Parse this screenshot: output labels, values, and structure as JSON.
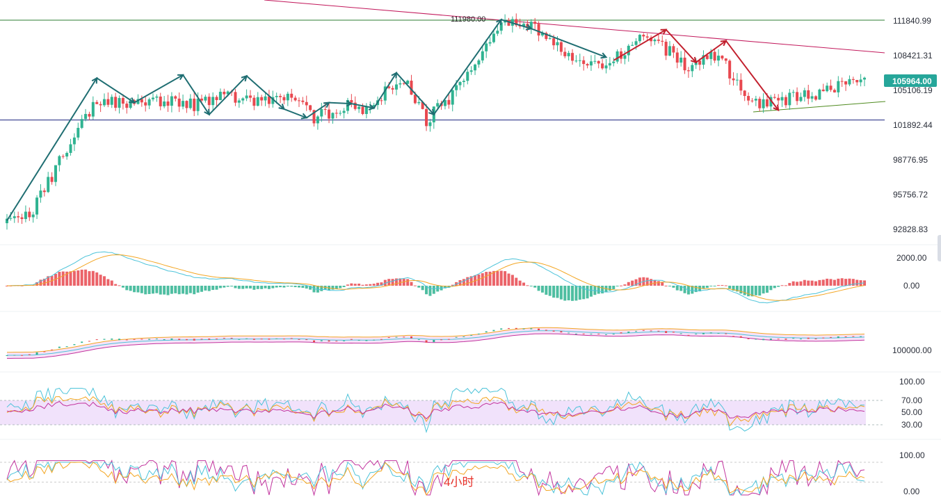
{
  "colors": {
    "up": "#2fb391",
    "down": "#e8484f",
    "uptrend_arrow": "#1f6e72",
    "downtrend_arrow": "#c2202e",
    "resistance_line": "#2e7d32",
    "support_line": "#1a237e",
    "trend_line": "#c2185b",
    "price_tag_bg": "#26a69a",
    "timeframe_text": "#e8322b"
  },
  "price_axis": {
    "labels": [
      "111840.99",
      "108421.31",
      "105106.19",
      "101892.44",
      "98776.95",
      "95756.72",
      "92828.83"
    ],
    "current_price": "105964.00"
  },
  "annotations": {
    "peak_label": "111980.00"
  },
  "panels": {
    "macd": {
      "labels": [
        "2000.00",
        "0.00"
      ]
    },
    "bollinger": {
      "labels": [
        "100000.00"
      ]
    },
    "rsi": {
      "labels": [
        "100.00",
        "70.00",
        "50.00",
        "30.00"
      ]
    },
    "kdj": {
      "labels": [
        "100.00",
        "0.00"
      ]
    }
  },
  "timeframe_label": "4小时",
  "chart_data": {
    "type": "candlestick",
    "x_axis": "unlabeled",
    "y_axis_scale": "log",
    "ylim": [
      92000,
      113500
    ],
    "horizontal_lines": [
      111840.99,
      102300
    ],
    "candle_count": 230,
    "close_path": [
      [
        0,
        93500
      ],
      [
        6,
        93800
      ],
      [
        14,
        98500
      ],
      [
        24,
        104000
      ],
      [
        34,
        103800
      ],
      [
        44,
        104100
      ],
      [
        50,
        103700
      ],
      [
        58,
        104500
      ],
      [
        66,
        103800
      ],
      [
        76,
        104300
      ],
      [
        82,
        102500
      ],
      [
        92,
        103700
      ],
      [
        98,
        103200
      ],
      [
        100,
        104600
      ],
      [
        106,
        106000
      ],
      [
        112,
        102300
      ],
      [
        120,
        104900
      ],
      [
        126,
        108500
      ],
      [
        134,
        111800
      ],
      [
        142,
        110800
      ],
      [
        150,
        108000
      ],
      [
        160,
        107200
      ],
      [
        170,
        110500
      ],
      [
        176,
        109000
      ],
      [
        182,
        107000
      ],
      [
        190,
        108700
      ],
      [
        198,
        103600
      ],
      [
        206,
        104100
      ],
      [
        214,
        104500
      ],
      [
        222,
        105400
      ],
      [
        229,
        105964
      ]
    ]
  }
}
